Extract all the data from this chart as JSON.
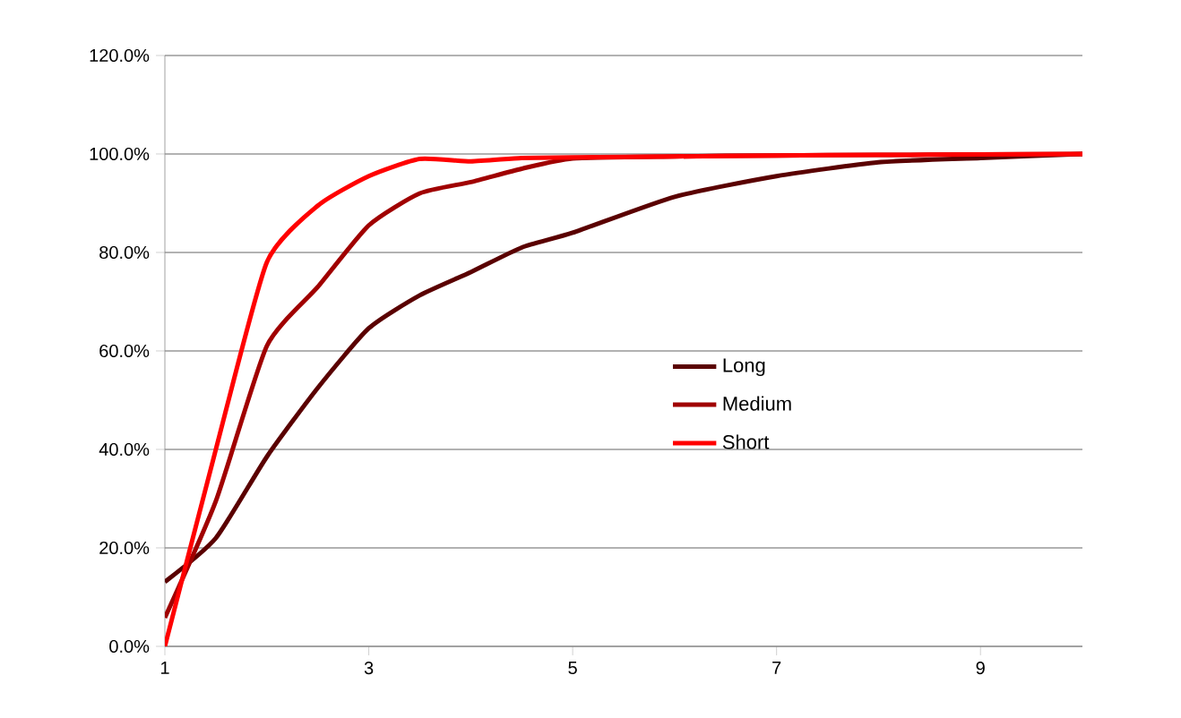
{
  "chart_data": {
    "type": "line",
    "x": [
      1,
      1.5,
      2,
      2.5,
      3,
      3.5,
      4,
      4.5,
      5,
      6,
      7,
      8,
      9,
      10
    ],
    "series": [
      {
        "name": "Long",
        "color": "#5a0000",
        "values": [
          13.1,
          22,
          38.5,
          52.5,
          64.6,
          71.3,
          76,
          81,
          84,
          91.3,
          95.5,
          98.3,
          99.2,
          100
        ]
      },
      {
        "name": "Medium",
        "color": "#a00000",
        "values": [
          5.8,
          29.5,
          61,
          73,
          85.5,
          92,
          94.3,
          97,
          99.1,
          99.5,
          99.7,
          99.8,
          99.9,
          100
        ]
      },
      {
        "name": "Short",
        "color": "#ff0000",
        "values": [
          0,
          40,
          78,
          89.5,
          95.5,
          99,
          98.5,
          99.2,
          99.3,
          99.5,
          99.7,
          99.8,
          99.9,
          100
        ]
      }
    ],
    "xlim": [
      1,
      10
    ],
    "xticks": [
      1,
      3,
      5,
      7,
      9
    ],
    "ylim": [
      0,
      120
    ],
    "yticks": [
      {
        "value": 0,
        "label": "0.0%"
      },
      {
        "value": 20,
        "label": "20.0%"
      },
      {
        "value": 40,
        "label": "40.0%"
      },
      {
        "value": 60,
        "label": "60.0%"
      },
      {
        "value": 80,
        "label": "80.0%"
      },
      {
        "value": 100,
        "label": "100.0%"
      },
      {
        "value": 120,
        "label": "120.0%"
      }
    ],
    "grid": "y",
    "legend": "right",
    "marker": "none",
    "line_style": "solid"
  }
}
